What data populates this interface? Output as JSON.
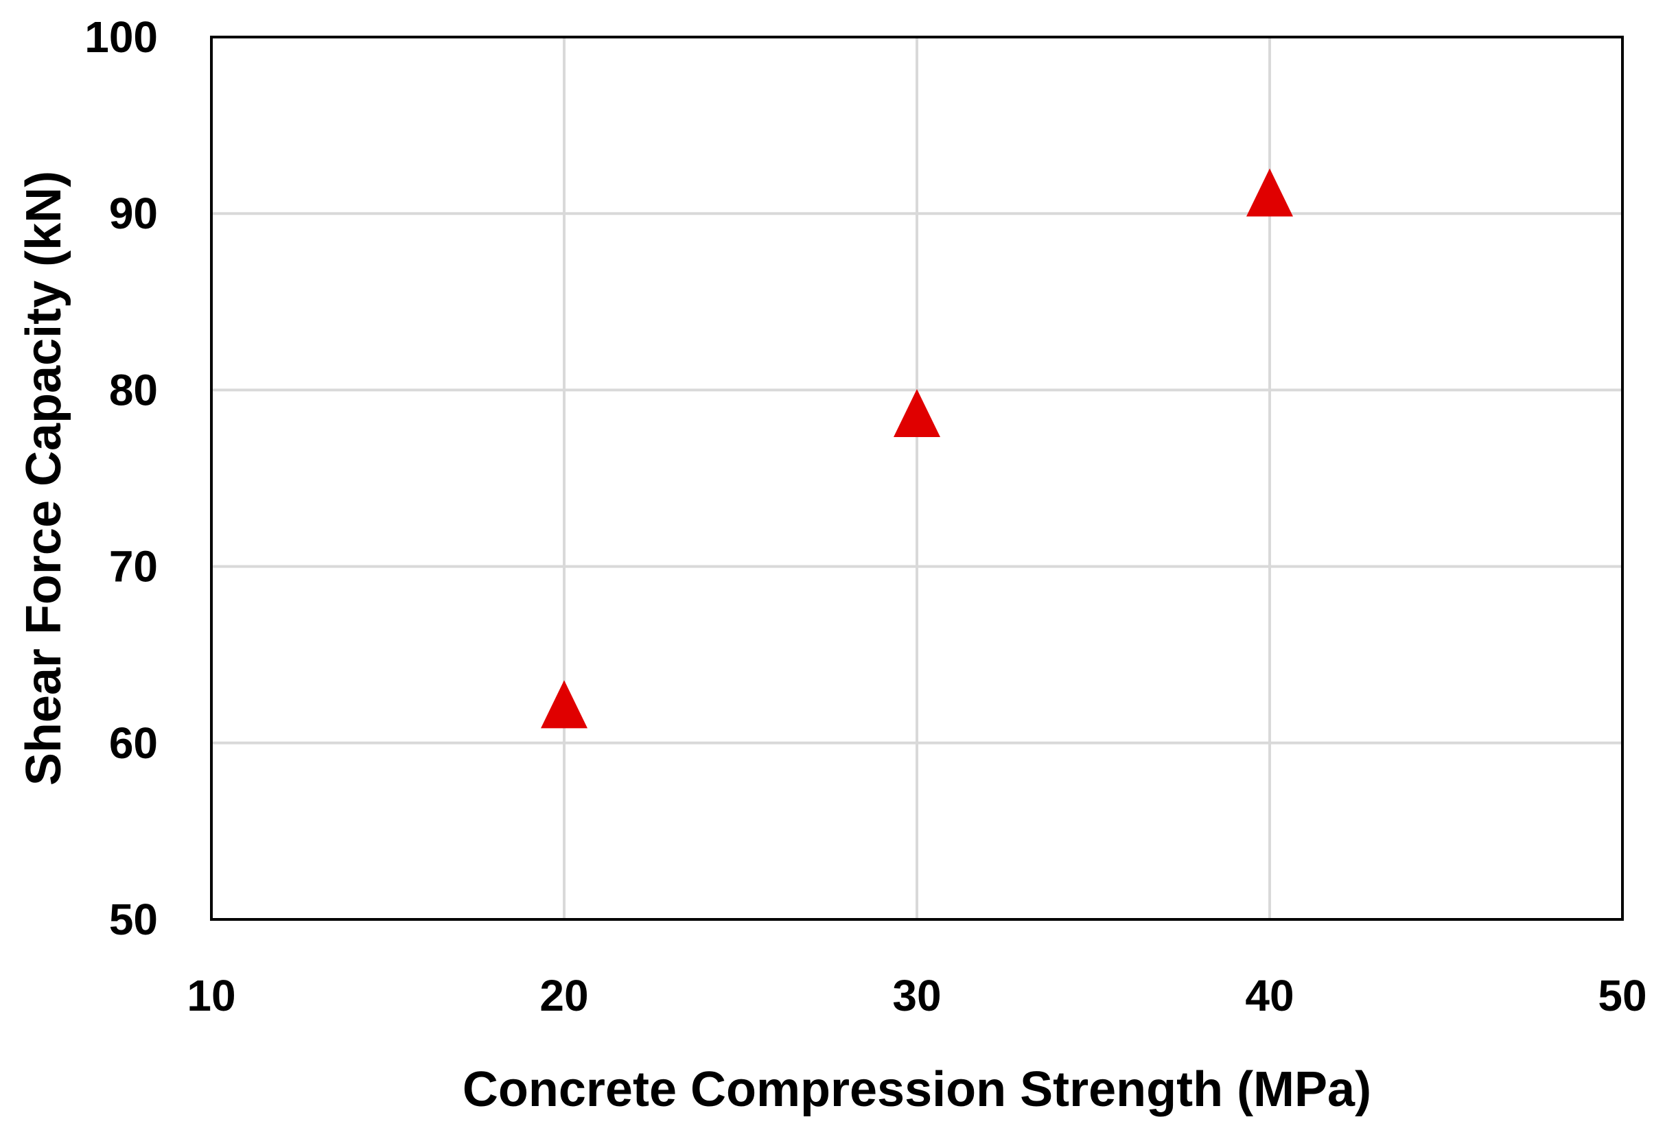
{
  "chart_data": {
    "type": "scatter",
    "title": "",
    "xlabel": "Concrete Compression Strength (MPa)",
    "ylabel": "Shear Force Capacity (kN)",
    "xlim": [
      10,
      50
    ],
    "ylim": [
      50,
      100
    ],
    "x_ticks": [
      "10",
      "20",
      "30",
      "40",
      "50"
    ],
    "y_ticks": [
      "50",
      "60",
      "70",
      "80",
      "90",
      "100"
    ],
    "grid": true,
    "legend": "none",
    "series": [
      {
        "marker": "triangle",
        "color": "#e00000",
        "x": [
          20,
          30,
          40
        ],
        "y": [
          62,
          78.5,
          91
        ]
      }
    ]
  }
}
